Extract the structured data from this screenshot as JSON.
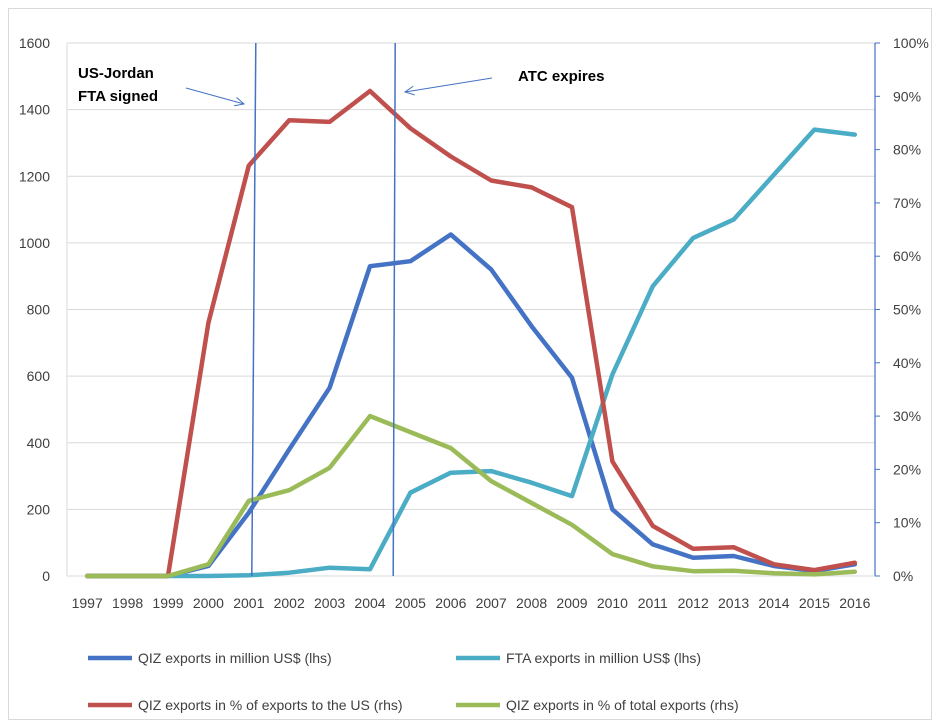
{
  "chart_data": {
    "type": "line",
    "x": [
      "1997",
      "1998",
      "1999",
      "2000",
      "2001",
      "2002",
      "2003",
      "2004",
      "2005",
      "2006",
      "2007",
      "2008",
      "2009",
      "2010",
      "2011",
      "2012",
      "2013",
      "2014",
      "2015",
      "2016"
    ],
    "y_left": {
      "range": [
        0,
        1600
      ],
      "ticks": [
        "0",
        "200",
        "400",
        "600",
        "800",
        "1000",
        "1200",
        "1400",
        "1600"
      ]
    },
    "y_right": {
      "range": [
        0,
        100
      ],
      "ticks": [
        "0%",
        "10%",
        "20%",
        "30%",
        "40%",
        "50%",
        "60%",
        "70%",
        "80%",
        "90%",
        "100%"
      ]
    },
    "grid": true,
    "legend_position": "bottom",
    "series": [
      {
        "name": "QIZ exports in million US$ (lhs)",
        "axis": "left",
        "color": "#4472c4",
        "values": [
          0,
          0,
          0,
          30,
          190,
          380,
          565,
          930,
          945,
          1025,
          920,
          750,
          595,
          200,
          95,
          55,
          60,
          30,
          15,
          35
        ]
      },
      {
        "name": "FTA exports in million US$ (lhs)",
        "axis": "left",
        "color": "#4bacc6",
        "values": [
          0,
          0,
          0,
          0,
          2,
          10,
          25,
          20,
          250,
          310,
          315,
          280,
          240,
          605,
          870,
          1015,
          1070,
          1205,
          1340,
          1325
        ]
      },
      {
        "name": "QIZ exports in % of exports to the US (rhs)",
        "axis": "right",
        "color": "#c0504d",
        "values": [
          0,
          0,
          0,
          47.5,
          77,
          85.5,
          85.2,
          91,
          84,
          78.7,
          74.2,
          72.9,
          69.2,
          21.5,
          9.4,
          5.1,
          5.4,
          2.2,
          1.1,
          2.5
        ]
      },
      {
        "name": "QIZ exports in % of total exports (rhs)",
        "axis": "right",
        "color": "#9bbb59",
        "values": [
          0,
          0,
          0,
          2.2,
          14.1,
          16.1,
          20.3,
          30,
          27,
          24,
          17.8,
          13.7,
          9.6,
          4.1,
          1.8,
          0.9,
          1.0,
          0.5,
          0.3,
          0.8
        ]
      }
    ],
    "annotations": [
      {
        "label_lines": [
          "US-Jordan",
          "FTA signed"
        ],
        "x_value": 2001
      },
      {
        "label_lines": [
          "ATC expires"
        ],
        "x_value": 2004.5
      }
    ]
  }
}
